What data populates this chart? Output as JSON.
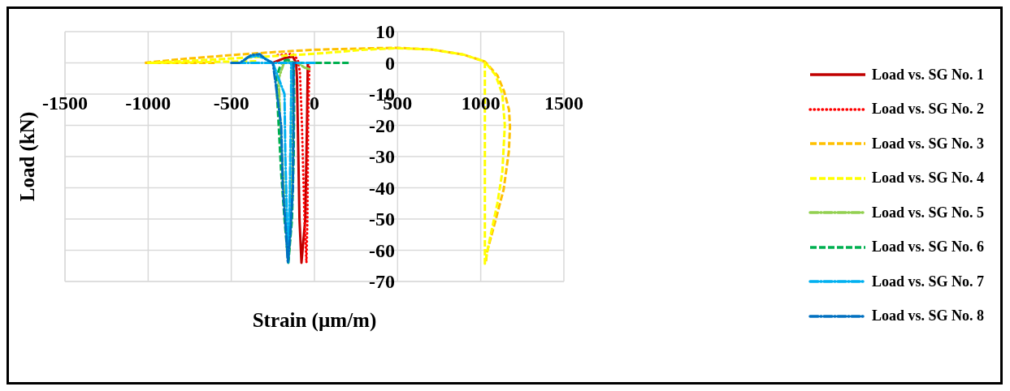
{
  "chart_data": {
    "type": "line",
    "xlabel": "Strain (µm/m)",
    "ylabel": "Load (kN)",
    "xlim": [
      -1500,
      1500
    ],
    "xticks": [
      -1500,
      -1000,
      -500,
      0,
      500,
      1000,
      1500
    ],
    "ylim": [
      -70,
      10
    ],
    "yticks": [
      -70,
      -60,
      -50,
      -40,
      -30,
      -20,
      -10,
      0,
      10
    ],
    "grid": true,
    "legend": "right",
    "marker": "none",
    "series": [
      {
        "name": "Load vs. SG No. 1",
        "color": "#c00000",
        "line_style": "solid",
        "x": [
          -40,
          -45,
          -55,
          -78,
          -90,
          -100,
          -105,
          -110,
          -130,
          -180,
          -250
        ],
        "values": [
          0,
          -20,
          -50,
          -64,
          -50,
          -20,
          -5,
          0,
          2,
          1.5,
          0
        ]
      },
      {
        "name": "Load vs. SG No. 2",
        "color": "#ff0000",
        "line_style": "dotted",
        "x": [
          -30,
          -38,
          -42,
          -48,
          -60,
          -75,
          -87,
          -100,
          -130,
          -200,
          -240
        ],
        "values": [
          0,
          -20,
          -50,
          -64,
          -50,
          -20,
          -3,
          1,
          2.9,
          2.6,
          2.4
        ]
      },
      {
        "name": "Load vs. SG No. 3",
        "color": "#ffc000",
        "line_style": "dashed",
        "x": [
          -600,
          -700,
          -1025,
          -800,
          -500,
          -200,
          0,
          360,
          500,
          700,
          900,
          1025,
          1100,
          1140,
          1170,
          1176,
          1169,
          1138,
          1088,
          1037,
          1030
        ],
        "values": [
          0,
          0,
          0,
          1.2,
          2.5,
          3.6,
          4.2,
          4.7,
          4.8,
          4.3,
          2.6,
          0.4,
          -4,
          -9,
          -15,
          -20.5,
          -28.4,
          -40.5,
          -50.6,
          -60.7,
          -64.3
        ]
      },
      {
        "name": "Load vs. SG No. 4",
        "color": "#ffff00",
        "line_style": "dashed",
        "x": [
          -350,
          -520,
          -800,
          -1000,
          -700,
          -300,
          0,
          300,
          500,
          700,
          900,
          1025,
          1025,
          1025,
          1060,
          1100,
          1130,
          1145,
          1130,
          1090,
          1025
        ],
        "values": [
          0.5,
          0.4,
          0.1,
          0,
          0.8,
          2,
          2.9,
          4.2,
          4.7,
          4.3,
          2.6,
          0.4,
          -30,
          -64.3,
          -55,
          -45,
          -35,
          -20,
          -10,
          -4,
          0.4
        ]
      },
      {
        "name": "Load vs. SG No. 5",
        "color": "#92d050",
        "line_style": "dashdot",
        "x": [
          -30,
          -60,
          -100,
          -180,
          -215,
          -205,
          -190,
          -175,
          -155,
          -140,
          -130,
          -128,
          -130
        ],
        "values": [
          -2,
          -1.5,
          0,
          0.5,
          -5,
          -20,
          -35,
          -50,
          -63,
          -50,
          -30,
          -10,
          0
        ]
      },
      {
        "name": "Load vs. SG No. 6",
        "color": "#00b050",
        "line_style": "dashed",
        "x": [
          206,
          0,
          -100,
          -200,
          -230,
          -215,
          -200,
          -180,
          -157,
          -135,
          -125,
          -122,
          -125,
          -160,
          -200
        ],
        "values": [
          0,
          0,
          0,
          0,
          -5,
          -20,
          -35,
          -50,
          -64,
          -50,
          -30,
          -10,
          0,
          1,
          0.5
        ]
      },
      {
        "name": "Load vs. SG No. 7",
        "color": "#00b0f0",
        "line_style": "dashdot",
        "x": [
          0,
          -100,
          -250,
          -446,
          -400,
          -346,
          -300,
          -250,
          -180,
          -175,
          -165,
          -157,
          -150,
          -145,
          -140,
          -140
        ],
        "values": [
          0,
          0,
          0,
          0,
          1.8,
          2.2,
          1.5,
          0,
          -10,
          -30,
          -50,
          -64,
          -50,
          -30,
          -10,
          0
        ]
      },
      {
        "name": "Load vs. SG No. 8",
        "color": "#0070c0",
        "line_style": "dashdot",
        "x": [
          -500,
          -446,
          -380,
          -330,
          -290,
          -250,
          -200,
          -190,
          -170,
          -160,
          -145,
          -130,
          -126,
          -126,
          -100
        ],
        "values": [
          0,
          0,
          2.5,
          2.8,
          1,
          0,
          -20,
          -40,
          -55,
          -64,
          -55,
          -40,
          -20,
          0,
          0
        ]
      }
    ]
  }
}
